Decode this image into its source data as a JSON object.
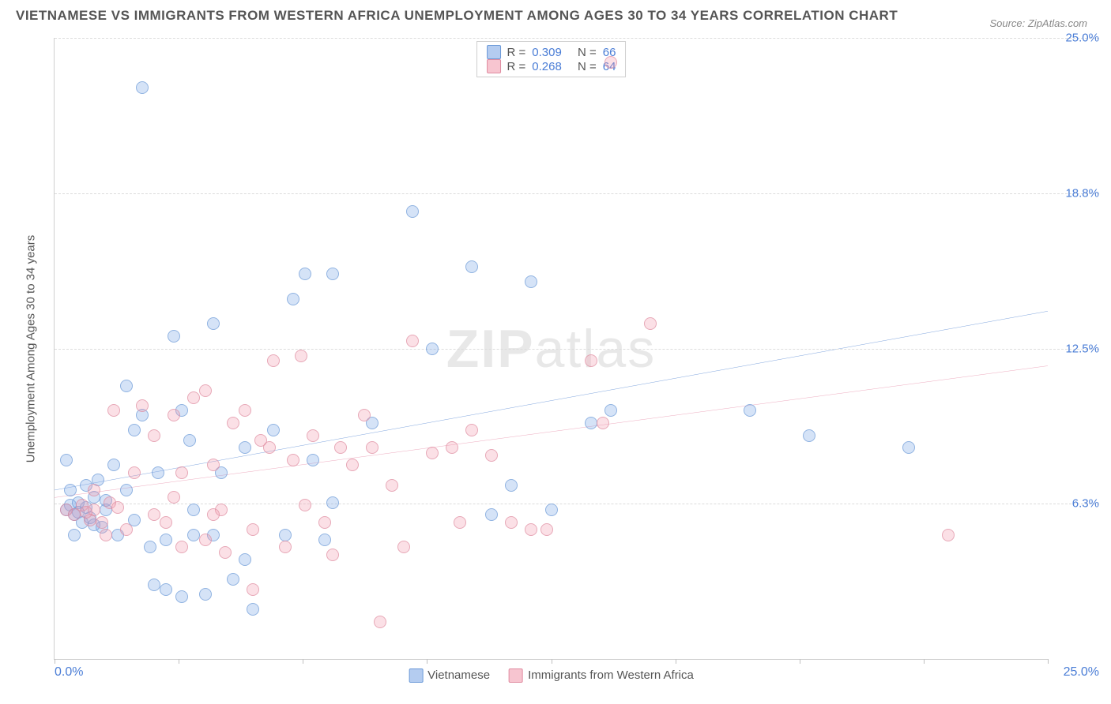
{
  "title": "VIETNAMESE VS IMMIGRANTS FROM WESTERN AFRICA UNEMPLOYMENT AMONG AGES 30 TO 34 YEARS CORRELATION CHART",
  "source_label": "Source: ZipAtlas.com",
  "watermark": {
    "bold": "ZIP",
    "light": "atlas"
  },
  "y_axis_title": "Unemployment Among Ages 30 to 34 years",
  "chart": {
    "type": "scatter",
    "xlim": [
      0,
      25
    ],
    "ylim": [
      0,
      25
    ],
    "x_ticks_pct": [
      0,
      12.5,
      25,
      37.5,
      50,
      62.5,
      75,
      87.5,
      100
    ],
    "x_tick_labels": {
      "0": "0.0%",
      "100": "25.0%"
    },
    "y_gridlines": [
      {
        "pct": 25,
        "label": "6.3%"
      },
      {
        "pct": 50,
        "label": "12.5%"
      },
      {
        "pct": 75,
        "label": "18.8%"
      },
      {
        "pct": 100,
        "label": "25.0%"
      }
    ],
    "background_color": "#ffffff",
    "grid_color": "#dcdcdc",
    "series": [
      {
        "key": "s1",
        "name": "Vietnamese",
        "marker_fill": "rgba(130,170,230,0.45)",
        "marker_stroke": "#6c9ad8",
        "trend_color": "#2a68c8",
        "trend_width": 2.5,
        "R": "0.309",
        "N": "66",
        "trend": {
          "y0": 6.8,
          "y1": 14.0
        },
        "points": [
          [
            0.3,
            6.0
          ],
          [
            0.4,
            6.2
          ],
          [
            0.5,
            5.8
          ],
          [
            0.6,
            6.3
          ],
          [
            0.7,
            5.5
          ],
          [
            0.8,
            6.1
          ],
          [
            0.9,
            5.7
          ],
          [
            1.0,
            6.5
          ],
          [
            1.1,
            7.2
          ],
          [
            1.2,
            5.3
          ],
          [
            0.4,
            6.8
          ],
          [
            0.6,
            5.9
          ],
          [
            0.8,
            7.0
          ],
          [
            1.0,
            5.4
          ],
          [
            1.3,
            6.0
          ],
          [
            1.5,
            7.8
          ],
          [
            1.3,
            6.4
          ],
          [
            1.8,
            11.0
          ],
          [
            1.6,
            5.0
          ],
          [
            2.0,
            5.6
          ],
          [
            2.0,
            9.2
          ],
          [
            2.2,
            9.8
          ],
          [
            2.4,
            4.5
          ],
          [
            2.6,
            7.5
          ],
          [
            2.5,
            3.0
          ],
          [
            2.8,
            2.8
          ],
          [
            2.8,
            4.8
          ],
          [
            3.0,
            13.0
          ],
          [
            3.2,
            10.0
          ],
          [
            3.4,
            8.8
          ],
          [
            3.5,
            5.0
          ],
          [
            3.5,
            6.0
          ],
          [
            3.8,
            2.6
          ],
          [
            4.0,
            13.5
          ],
          [
            4.0,
            5.0
          ],
          [
            4.2,
            7.5
          ],
          [
            4.5,
            3.2
          ],
          [
            4.8,
            8.5
          ],
          [
            5.0,
            2.0
          ],
          [
            5.5,
            9.2
          ],
          [
            5.8,
            5.0
          ],
          [
            6.0,
            14.5
          ],
          [
            6.3,
            15.5
          ],
          [
            6.5,
            8.0
          ],
          [
            7.0,
            15.5
          ],
          [
            7.0,
            6.3
          ],
          [
            8.0,
            9.5
          ],
          [
            9.0,
            18.0
          ],
          [
            9.5,
            12.5
          ],
          [
            10.5,
            15.8
          ],
          [
            11.5,
            7.0
          ],
          [
            12.0,
            15.2
          ],
          [
            12.5,
            6.0
          ],
          [
            13.5,
            9.5
          ],
          [
            14.0,
            10.0
          ],
          [
            17.5,
            10.0
          ],
          [
            19.0,
            9.0
          ],
          [
            21.5,
            8.5
          ],
          [
            3.2,
            2.5
          ],
          [
            0.3,
            8.0
          ],
          [
            0.5,
            5.0
          ],
          [
            1.8,
            6.8
          ],
          [
            2.2,
            23.0
          ],
          [
            4.8,
            4.0
          ],
          [
            6.8,
            4.8
          ],
          [
            11.0,
            5.8
          ]
        ]
      },
      {
        "key": "s2",
        "name": "Immigrants from Western Africa",
        "marker_fill": "rgba(240,150,170,0.4)",
        "marker_stroke": "#e08ca0",
        "trend_color": "#d94f78",
        "trend_width": 2,
        "R": "0.268",
        "N": "64",
        "trend": {
          "y0": 6.5,
          "y1": 11.8
        },
        "points": [
          [
            0.3,
            6.0
          ],
          [
            0.5,
            5.8
          ],
          [
            0.7,
            6.2
          ],
          [
            0.9,
            5.6
          ],
          [
            1.0,
            6.0
          ],
          [
            1.2,
            5.5
          ],
          [
            1.4,
            6.3
          ],
          [
            1.0,
            6.8
          ],
          [
            1.3,
            5.0
          ],
          [
            1.6,
            6.1
          ],
          [
            2.0,
            7.5
          ],
          [
            2.2,
            10.2
          ],
          [
            2.5,
            9.0
          ],
          [
            2.8,
            5.5
          ],
          [
            3.0,
            9.8
          ],
          [
            3.2,
            4.5
          ],
          [
            3.5,
            10.5
          ],
          [
            3.8,
            4.8
          ],
          [
            3.8,
            10.8
          ],
          [
            4.0,
            7.8
          ],
          [
            4.2,
            6.0
          ],
          [
            4.5,
            9.5
          ],
          [
            4.8,
            10.0
          ],
          [
            5.0,
            5.2
          ],
          [
            5.0,
            2.8
          ],
          [
            5.5,
            12.0
          ],
          [
            5.4,
            8.5
          ],
          [
            5.8,
            4.5
          ],
          [
            6.0,
            8.0
          ],
          [
            6.2,
            12.2
          ],
          [
            6.5,
            9.0
          ],
          [
            6.8,
            5.5
          ],
          [
            7.0,
            4.2
          ],
          [
            7.5,
            7.8
          ],
          [
            7.8,
            9.8
          ],
          [
            8.0,
            8.5
          ],
          [
            8.2,
            1.5
          ],
          [
            8.5,
            7.0
          ],
          [
            9.0,
            12.8
          ],
          [
            9.5,
            8.3
          ],
          [
            10.0,
            8.5
          ],
          [
            10.2,
            5.5
          ],
          [
            10.5,
            9.2
          ],
          [
            11.0,
            8.2
          ],
          [
            11.5,
            5.5
          ],
          [
            12.0,
            5.2
          ],
          [
            12.4,
            5.2
          ],
          [
            13.5,
            12.0
          ],
          [
            13.8,
            9.5
          ],
          [
            14.0,
            24.0
          ],
          [
            15.0,
            13.5
          ],
          [
            22.5,
            5.0
          ],
          [
            2.5,
            5.8
          ],
          [
            3.2,
            7.5
          ],
          [
            1.8,
            5.2
          ],
          [
            4.3,
            4.3
          ],
          [
            6.3,
            6.2
          ],
          [
            8.8,
            4.5
          ],
          [
            1.5,
            10.0
          ],
          [
            0.8,
            5.9
          ],
          [
            5.2,
            8.8
          ],
          [
            4.0,
            5.8
          ],
          [
            7.2,
            8.5
          ],
          [
            3.0,
            6.5
          ]
        ]
      }
    ]
  },
  "legend_top": {
    "rows": [
      {
        "series": "s1",
        "r_label": "R =",
        "r_value": "0.309",
        "n_label": "N =",
        "n_value": "66"
      },
      {
        "series": "s2",
        "r_label": "R =",
        "r_value": "0.268",
        "n_label": "N =",
        "n_value": "64"
      }
    ]
  },
  "legend_bottom": {
    "items": [
      {
        "series": "s1",
        "label": "Vietnamese"
      },
      {
        "series": "s2",
        "label": "Immigrants from Western Africa"
      }
    ]
  }
}
